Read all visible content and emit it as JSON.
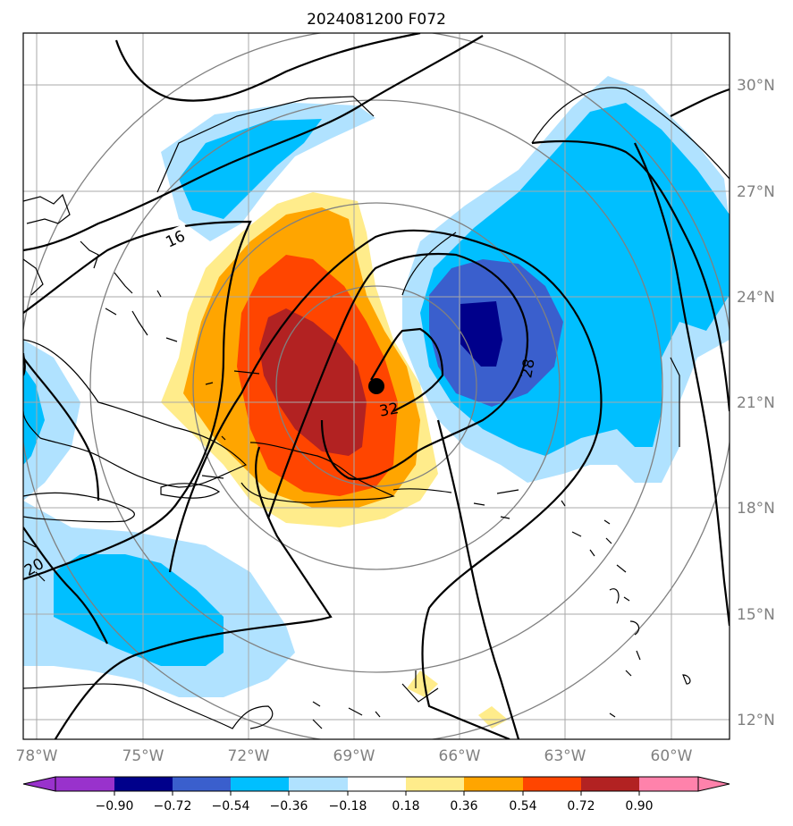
{
  "title": "2024081200 F072",
  "map": {
    "lat_labels": [
      "30°N",
      "27°N",
      "24°N",
      "21°N",
      "18°N",
      "15°N",
      "12°N"
    ],
    "lon_labels": [
      "78°W",
      "75°W",
      "72°W",
      "69°W",
      "66°W",
      "63°W",
      "60°W"
    ],
    "contour_labels": [
      "16",
      "28",
      "32",
      "20"
    ],
    "storm_marker": {
      "label": "storm-center"
    }
  },
  "colorbar": {
    "ticks": [
      "−0.90",
      "−0.72",
      "−0.54",
      "−0.36",
      "−0.18",
      "0.18",
      "0.36",
      "0.54",
      "0.72",
      "0.90"
    ],
    "colors": [
      "#9932cc",
      "#00008b",
      "#3a5fcd",
      "#00bfff",
      "#b0e2ff",
      "#ffffff",
      "#ffec8b",
      "#ffa500",
      "#ff4500",
      "#b22222",
      "#ff82ab"
    ]
  },
  "colors": {
    "frame": "#000000",
    "grid": "#a9a9a9",
    "range_rings": "#808080",
    "contour": "#000000",
    "coastline": "#000000"
  }
}
